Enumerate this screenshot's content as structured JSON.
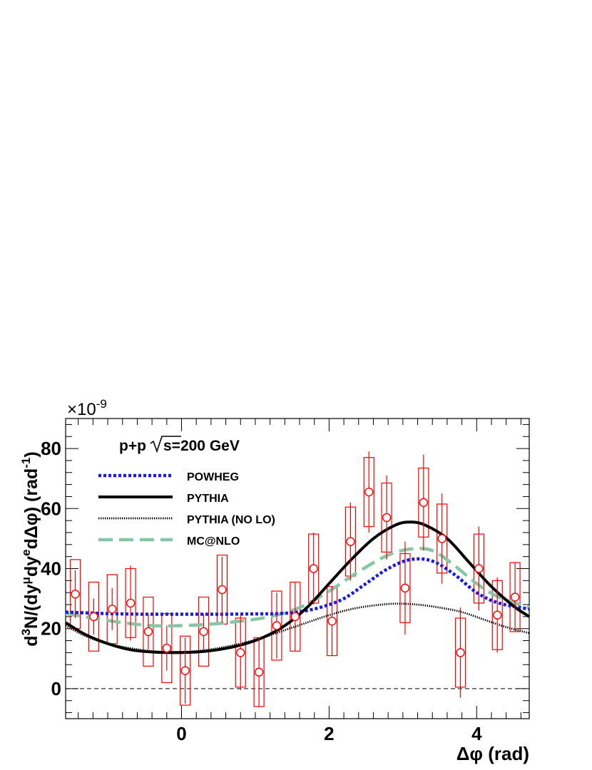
{
  "chart_data": {
    "type": "scatter",
    "title": "",
    "annotation": "p+p√s=200 GeV",
    "annotation_parts": {
      "left": "p+p",
      "right": "s=200 GeV"
    },
    "multiplier": {
      "prefix": "×10",
      "exponent": "-9"
    },
    "xlabel": "Δφ (rad)",
    "ylabel": {
      "d1": "d",
      "e1": "3",
      "d2": "N/(dy",
      "e2": "μ",
      "d3": "dy",
      "e3": "e",
      "d4": "dΔφ) (rad",
      "e4": "-1",
      "d5": ")"
    },
    "xlim": [
      -1.5708,
      4.7124
    ],
    "ylim": [
      -10,
      90
    ],
    "x_ticks": [
      0,
      2,
      4
    ],
    "y_ticks": [
      0,
      20,
      40,
      60,
      80
    ],
    "x_tick_labels": [
      "0",
      "2",
      "4"
    ],
    "y_tick_labels": [
      "0",
      "20",
      "40",
      "60",
      "80"
    ],
    "zero_line": true,
    "legend": [
      {
        "label": "POWHEG",
        "color": "#1a1ae6",
        "style": "dotted"
      },
      {
        "label": "PYTHIA",
        "color": "#000000",
        "style": "solid"
      },
      {
        "label": "PYTHIA (NO LO)",
        "color": "#000000",
        "style": "fine-dotted"
      },
      {
        "label": "MC@NLO",
        "color": "#86c6a6",
        "style": "dashed"
      }
    ],
    "data_series": {
      "name": "data",
      "color": "#ff0000",
      "points": [
        {
          "x": -1.44,
          "y": 31.5,
          "stat": 8.0,
          "sys": 11.5
        },
        {
          "x": -1.19,
          "y": 24.0,
          "stat": 6.0,
          "sys": 11.5
        },
        {
          "x": -0.94,
          "y": 26.5,
          "stat": 7.0,
          "sys": 11.5
        },
        {
          "x": -0.69,
          "y": 28.5,
          "stat": 12.5,
          "sys": 11.5
        },
        {
          "x": -0.45,
          "y": 19.0,
          "stat": 6.0,
          "sys": 11.5
        },
        {
          "x": -0.2,
          "y": 13.5,
          "stat": 7.5,
          "sys": 11.5
        },
        {
          "x": 0.05,
          "y": 6.0,
          "stat": 11.0,
          "sys": 11.5
        },
        {
          "x": 0.3,
          "y": 19.0,
          "stat": 6.0,
          "sys": 11.5
        },
        {
          "x": 0.55,
          "y": 33.0,
          "stat": 11.0,
          "sys": 11.5
        },
        {
          "x": 0.8,
          "y": 12.0,
          "stat": 12.5,
          "sys": 11.5
        },
        {
          "x": 1.05,
          "y": 5.5,
          "stat": 11.5,
          "sys": 11.5
        },
        {
          "x": 1.29,
          "y": 21.0,
          "stat": 11.0,
          "sys": 11.5
        },
        {
          "x": 1.54,
          "y": 24.0,
          "stat": 11.5,
          "sys": 11.5
        },
        {
          "x": 1.79,
          "y": 40.0,
          "stat": 12.0,
          "sys": 11.5
        },
        {
          "x": 2.04,
          "y": 22.5,
          "stat": 11.5,
          "sys": 11.5
        },
        {
          "x": 2.29,
          "y": 49.0,
          "stat": 13.0,
          "sys": 11.5
        },
        {
          "x": 2.54,
          "y": 65.5,
          "stat": 13.5,
          "sys": 11.5
        },
        {
          "x": 2.78,
          "y": 57.0,
          "stat": 14.0,
          "sys": 11.5
        },
        {
          "x": 3.03,
          "y": 33.5,
          "stat": 15.5,
          "sys": 11.5
        },
        {
          "x": 3.28,
          "y": 62.0,
          "stat": 16.0,
          "sys": 11.5
        },
        {
          "x": 3.53,
          "y": 50.0,
          "stat": 15.0,
          "sys": 11.5
        },
        {
          "x": 3.78,
          "y": 12.0,
          "stat": 15.0,
          "sys": 11.5
        },
        {
          "x": 4.03,
          "y": 40.0,
          "stat": 14.0,
          "sys": 11.5
        },
        {
          "x": 4.28,
          "y": 24.5,
          "stat": 12.5,
          "sys": 11.5
        },
        {
          "x": 4.52,
          "y": 30.5,
          "stat": 11.5,
          "sys": 11.5
        }
      ]
    },
    "series": [
      {
        "name": "POWHEG",
        "color": "#1a1ae6",
        "x": [
          -1.5708,
          -1.0,
          -0.5,
          0.0,
          0.5,
          1.0,
          1.3,
          1.6,
          1.9,
          2.2,
          2.5,
          2.8,
          3.1,
          3.4,
          3.7,
          4.0,
          4.3,
          4.7124
        ],
        "y": [
          25.5,
          25.0,
          24.8,
          24.8,
          24.8,
          24.9,
          25.0,
          25.6,
          27.2,
          30.0,
          35.0,
          40.0,
          43.0,
          42.5,
          38.0,
          32.0,
          28.5,
          26.5
        ]
      },
      {
        "name": "PYTHIA",
        "color": "#000000",
        "x": [
          -1.5708,
          -1.3,
          -1.0,
          -0.7,
          -0.4,
          -0.1,
          0.2,
          0.5,
          0.8,
          1.1,
          1.4,
          1.7,
          2.0,
          2.3,
          2.6,
          2.9,
          3.1,
          3.3,
          3.6,
          3.9,
          4.2,
          4.5,
          4.7124
        ],
        "y": [
          22.0,
          18.0,
          15.0,
          13.0,
          12.2,
          12.0,
          12.2,
          13.0,
          14.5,
          17.0,
          21.0,
          27.0,
          35.0,
          43.0,
          50.0,
          54.5,
          55.5,
          54.5,
          50.0,
          42.0,
          34.0,
          27.5,
          24.0
        ]
      },
      {
        "name": "PYTHIA (NO LO)",
        "color": "#000000",
        "x": [
          -1.5708,
          -1.3,
          -1.0,
          -0.7,
          -0.4,
          -0.1,
          0.2,
          0.5,
          0.8,
          1.1,
          1.4,
          1.7,
          2.0,
          2.3,
          2.6,
          2.9,
          3.2,
          3.5,
          3.8,
          4.1,
          4.4,
          4.7124
        ],
        "y": [
          21.0,
          17.5,
          15.0,
          13.5,
          12.5,
          12.2,
          12.5,
          13.5,
          15.0,
          17.0,
          19.5,
          22.0,
          24.5,
          26.5,
          27.7,
          28.3,
          28.0,
          27.0,
          25.5,
          23.0,
          20.5,
          18.5
        ]
      },
      {
        "name": "MC@NLO",
        "color": "#86c6a6",
        "x": [
          -1.5708,
          -1.2,
          -0.8,
          -0.4,
          0.0,
          0.4,
          0.8,
          1.2,
          1.6,
          2.0,
          2.4,
          2.8,
          3.1,
          3.4,
          3.7,
          4.0,
          4.3,
          4.7124
        ],
        "y": [
          25.0,
          23.5,
          22.0,
          21.0,
          21.0,
          21.5,
          22.5,
          24.0,
          27.0,
          32.5,
          39.0,
          44.5,
          46.5,
          46.0,
          41.0,
          35.0,
          30.5,
          27.0
        ]
      }
    ]
  }
}
